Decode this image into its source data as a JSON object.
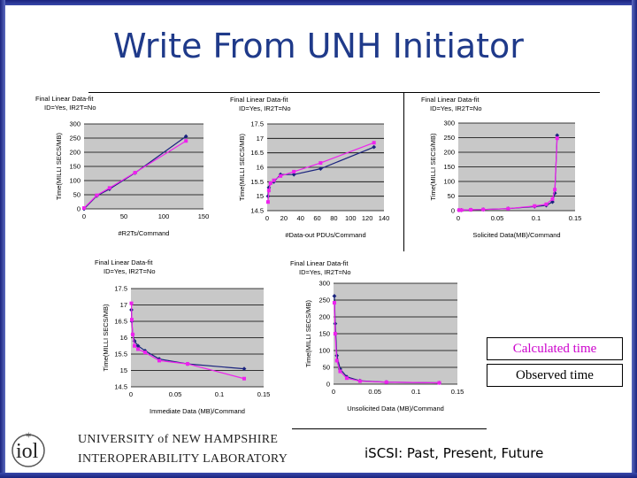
{
  "slide": {
    "title": "Write From UNH Initiator",
    "footer_left_line1": "UNIVERSITY of NEW HAMPSHIRE",
    "footer_left_line2": "INTEROPERABILITY LABORATORY",
    "logo_text": "iol",
    "footer_right": "iSCSI: Past, Present, Future",
    "legend": {
      "calculated": "Calculated time",
      "observed": "Observed time",
      "calculated_color": "#cc00cc",
      "observed_color": "#000000"
    },
    "colors": {
      "calculated": "#ee22ee",
      "observed": "#1a237e",
      "title": "#1f3a8a"
    }
  },
  "chart_data": [
    {
      "type": "line",
      "title_lines": [
        "Final Linear Data-fit",
        "ID=Yes, IR2T=No"
      ],
      "xlabel": "#R2Ts/Command",
      "ylabel": "Time(MILLI SECS/MB)",
      "xlim": [
        0,
        150
      ],
      "ylim": [
        0,
        300
      ],
      "xticks": [
        "0",
        "50",
        "100",
        "150"
      ],
      "yticks": [
        "0",
        "50",
        "100",
        "150",
        "200",
        "250",
        "300"
      ],
      "series": [
        {
          "points": [
            [
              0,
              0
            ],
            [
              16,
              46
            ],
            [
              32,
              70
            ],
            [
              64,
              127
            ],
            [
              128,
              256
            ]
          ]
        },
        {
          "points": [
            [
              0,
              3
            ],
            [
              16,
              48
            ],
            [
              32,
              74
            ],
            [
              64,
              128
            ],
            [
              128,
              240
            ]
          ]
        }
      ]
    },
    {
      "type": "line",
      "title_lines": [
        "Final Linear Data-fit",
        "ID=Yes, IR2T=No"
      ],
      "xlabel": "#Data-out PDUs/Command",
      "ylabel": "Time(MILLI SECS/MB)",
      "xlim": [
        0,
        140
      ],
      "ylim": [
        14.5,
        17.5
      ],
      "xticks": [
        "0",
        "20",
        "40",
        "60",
        "80",
        "100",
        "120",
        "140"
      ],
      "yticks": [
        "14.5",
        "15",
        "15.5",
        "16",
        "16.5",
        "17",
        "17.5"
      ],
      "series": [
        {
          "points": [
            [
              1,
              15.0
            ],
            [
              2,
              15.3
            ],
            [
              4,
              15.45
            ],
            [
              8,
              15.5
            ],
            [
              16,
              15.75
            ],
            [
              32,
              15.75
            ],
            [
              64,
              15.95
            ],
            [
              128,
              16.7
            ]
          ]
        },
        {
          "points": [
            [
              1,
              14.8
            ],
            [
              2,
              15.2
            ],
            [
              4,
              15.45
            ],
            [
              8,
              15.55
            ],
            [
              16,
              15.7
            ],
            [
              32,
              15.85
            ],
            [
              64,
              16.15
            ],
            [
              128,
              16.85
            ]
          ]
        }
      ]
    },
    {
      "type": "line",
      "title_lines": [
        "Final Linear Data-fit",
        "ID=Yes, IR2T=No"
      ],
      "xlabel": "Solicited Data(MB)/Command",
      "ylabel": "Time(MILLI SECS/MB)",
      "xlim": [
        0,
        0.15
      ],
      "ylim": [
        0,
        300
      ],
      "xticks": [
        "0",
        "0.05",
        "0.1",
        "0.15"
      ],
      "yticks": [
        "0",
        "50",
        "100",
        "150",
        "200",
        "250",
        "300"
      ],
      "series": [
        {
          "points": [
            [
              0.001,
              2
            ],
            [
              0.004,
              2
            ],
            [
              0.016,
              3
            ],
            [
              0.032,
              4
            ],
            [
              0.064,
              7
            ],
            [
              0.098,
              14
            ],
            [
              0.113,
              18
            ],
            [
              0.121,
              30
            ],
            [
              0.124,
              60
            ],
            [
              0.127,
              258
            ]
          ]
        },
        {
          "points": [
            [
              0.001,
              2
            ],
            [
              0.004,
              2
            ],
            [
              0.016,
              3
            ],
            [
              0.032,
              4
            ],
            [
              0.064,
              7
            ],
            [
              0.098,
              16
            ],
            [
              0.113,
              22
            ],
            [
              0.121,
              40
            ],
            [
              0.124,
              72
            ],
            [
              0.127,
              248
            ]
          ]
        }
      ]
    },
    {
      "type": "line",
      "title_lines": [
        "Final Linear Data-fit",
        "ID=Yes, IR2T=No"
      ],
      "xlabel": "Immediate Data (MB)/Command",
      "ylabel": "Time(MILLI SECS/MB)",
      "xlim": [
        0,
        0.15
      ],
      "ylim": [
        14.5,
        17.5
      ],
      "xticks": [
        "0",
        "0.05",
        "0.1",
        "0.15"
      ],
      "yticks": [
        "14.5",
        "15",
        "15.5",
        "16",
        "16.5",
        "17",
        "17.5"
      ],
      "series": [
        {
          "points": [
            [
              0.0005,
              16.85
            ],
            [
              0.001,
              16.5
            ],
            [
              0.002,
              16.1
            ],
            [
              0.004,
              15.9
            ],
            [
              0.008,
              15.75
            ],
            [
              0.016,
              15.6
            ],
            [
              0.032,
              15.35
            ],
            [
              0.064,
              15.2
            ],
            [
              0.128,
              15.05
            ]
          ]
        },
        {
          "points": [
            [
              0.0005,
              17.05
            ],
            [
              0.001,
              16.55
            ],
            [
              0.002,
              16.1
            ],
            [
              0.004,
              15.75
            ],
            [
              0.008,
              15.65
            ],
            [
              0.016,
              15.55
            ],
            [
              0.032,
              15.3
            ],
            [
              0.064,
              15.2
            ],
            [
              0.128,
              14.75
            ]
          ]
        }
      ]
    },
    {
      "type": "line",
      "title_lines": [
        "Final Linear Data-fit",
        "ID=Yes, IR2T=No"
      ],
      "xlabel": "Unsolicited Data (MB)/Command",
      "ylabel": "Time(MILLI SECS/MB)",
      "xlim": [
        0,
        0.15
      ],
      "ylim": [
        0,
        300
      ],
      "xticks": [
        "0",
        "0.05",
        "0.1",
        "0.15"
      ],
      "yticks": [
        "0",
        "50",
        "100",
        "150",
        "200",
        "250",
        "300"
      ],
      "series": [
        {
          "points": [
            [
              0.001,
              262
            ],
            [
              0.002,
              180
            ],
            [
              0.004,
              85
            ],
            [
              0.008,
              45
            ],
            [
              0.016,
              22
            ],
            [
              0.032,
              10
            ],
            [
              0.064,
              6
            ],
            [
              0.128,
              4
            ]
          ]
        },
        {
          "points": [
            [
              0.001,
              242
            ],
            [
              0.002,
              150
            ],
            [
              0.004,
              70
            ],
            [
              0.008,
              38
            ],
            [
              0.016,
              18
            ],
            [
              0.032,
              9
            ],
            [
              0.064,
              6
            ],
            [
              0.128,
              4
            ]
          ]
        }
      ]
    }
  ]
}
